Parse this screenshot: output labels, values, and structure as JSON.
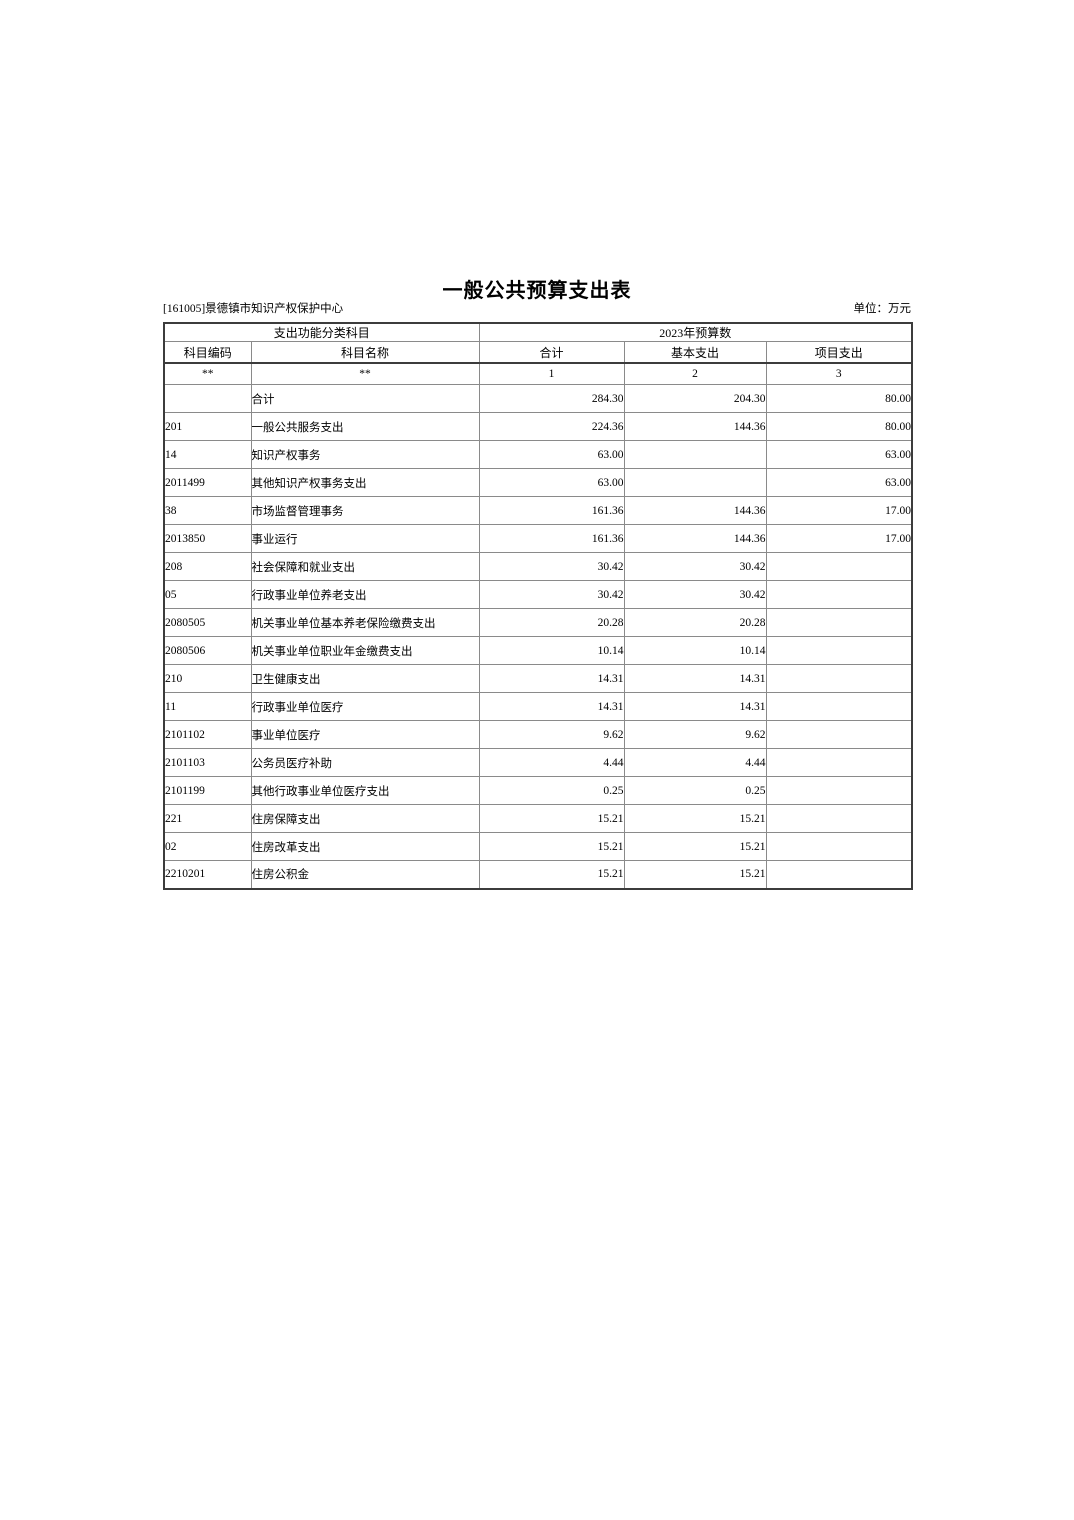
{
  "page": {
    "title": "一般公共预算支出表",
    "org": "[161005]景德镇市知识产权保护中心",
    "unit_label": "单位：万元"
  },
  "table": {
    "group_headers": {
      "function_group": "支出功能分类科目",
      "budget_group": "2023年预算数"
    },
    "columns": [
      "科目编码",
      "科目名称",
      "合计",
      "基本支出",
      "项目支出"
    ],
    "index_row": [
      "**",
      "**",
      "1",
      "2",
      "3"
    ],
    "rows": [
      {
        "code": "",
        "indent": 0,
        "name": "合计",
        "total": "284.30",
        "basic": "204.30",
        "project": "80.00"
      },
      {
        "code": "201",
        "indent": 0,
        "name": "一般公共服务支出",
        "total": "224.36",
        "basic": "144.36",
        "project": "80.00"
      },
      {
        "code": "14",
        "indent": 1,
        "name": "知识产权事务",
        "total": "63.00",
        "basic": "",
        "project": "63.00"
      },
      {
        "code": "2011499",
        "indent": 2,
        "name": "其他知识产权事务支出",
        "total": "63.00",
        "basic": "",
        "project": "63.00"
      },
      {
        "code": "38",
        "indent": 1,
        "name": "市场监督管理事务",
        "total": "161.36",
        "basic": "144.36",
        "project": "17.00"
      },
      {
        "code": "2013850",
        "indent": 2,
        "name": "事业运行",
        "total": "161.36",
        "basic": "144.36",
        "project": "17.00"
      },
      {
        "code": "208",
        "indent": 0,
        "name": "社会保障和就业支出",
        "total": "30.42",
        "basic": "30.42",
        "project": ""
      },
      {
        "code": "05",
        "indent": 1,
        "name": "行政事业单位养老支出",
        "total": "30.42",
        "basic": "30.42",
        "project": ""
      },
      {
        "code": "2080505",
        "indent": 2,
        "name": "机关事业单位基本养老保险缴费支出",
        "total": "20.28",
        "basic": "20.28",
        "project": ""
      },
      {
        "code": "2080506",
        "indent": 2,
        "name": "机关事业单位职业年金缴费支出",
        "total": "10.14",
        "basic": "10.14",
        "project": ""
      },
      {
        "code": "210",
        "indent": 0,
        "name": "卫生健康支出",
        "total": "14.31",
        "basic": "14.31",
        "project": ""
      },
      {
        "code": "11",
        "indent": 1,
        "name": "行政事业单位医疗",
        "total": "14.31",
        "basic": "14.31",
        "project": ""
      },
      {
        "code": "2101102",
        "indent": 2,
        "name": "事业单位医疗",
        "total": "9.62",
        "basic": "9.62",
        "project": ""
      },
      {
        "code": "2101103",
        "indent": 2,
        "name": "公务员医疗补助",
        "total": "4.44",
        "basic": "4.44",
        "project": ""
      },
      {
        "code": "2101199",
        "indent": 2,
        "name": "其他行政事业单位医疗支出",
        "total": "0.25",
        "basic": "0.25",
        "project": ""
      },
      {
        "code": "221",
        "indent": 0,
        "name": "住房保障支出",
        "total": "15.21",
        "basic": "15.21",
        "project": ""
      },
      {
        "code": "02",
        "indent": 1,
        "name": "住房改革支出",
        "total": "15.21",
        "basic": "15.21",
        "project": ""
      },
      {
        "code": "2210201",
        "indent": 2,
        "name": "住房公积金",
        "total": "15.21",
        "basic": "15.21",
        "project": ""
      }
    ]
  }
}
